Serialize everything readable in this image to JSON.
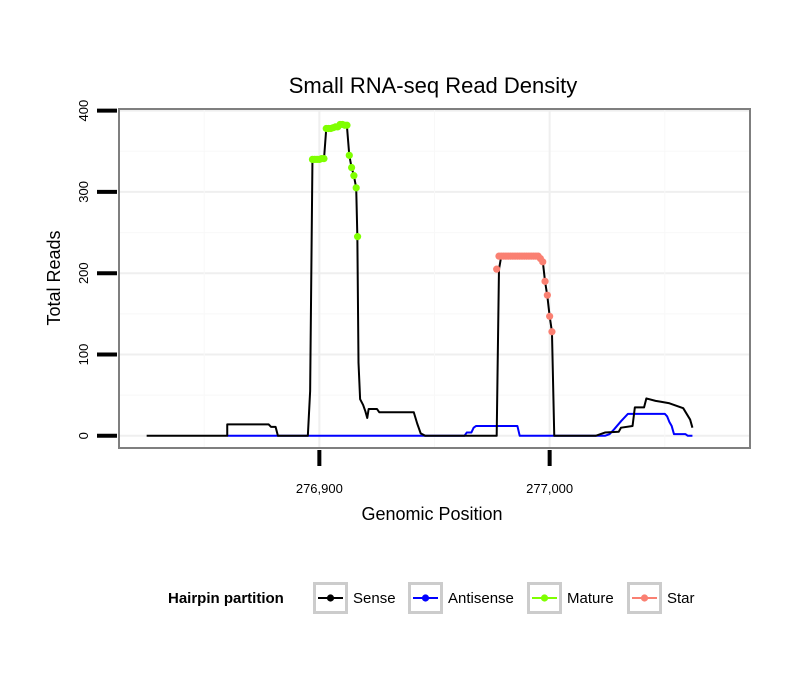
{
  "chart_data": {
    "type": "line",
    "title": "Small RNA-seq Read Density",
    "xlabel": "Genomic Position",
    "ylabel": "Total Reads",
    "xlim": [
      276813,
      277087
    ],
    "ylim": [
      -15,
      402
    ],
    "x_ticks": [
      {
        "value": 276900,
        "label": "276,900"
      },
      {
        "value": 277000,
        "label": "277,000"
      }
    ],
    "y_ticks": [
      {
        "value": 0,
        "label": "0"
      },
      {
        "value": 100,
        "label": "100"
      },
      {
        "value": 200,
        "label": "200"
      },
      {
        "value": 300,
        "label": "300"
      },
      {
        "value": 400,
        "label": "400"
      }
    ],
    "grid": true,
    "legend": {
      "title": "Hairpin partition",
      "position": "bottom",
      "items": [
        {
          "name": "Sense",
          "color": "#000000"
        },
        {
          "name": "Antisense",
          "color": "#0000FF"
        },
        {
          "name": "Mature",
          "color": "#7FFF00"
        },
        {
          "name": "Star",
          "color": "#FA8072"
        }
      ]
    },
    "series": [
      {
        "name": "Sense",
        "kind": "line",
        "color": "#000000",
        "points": [
          [
            276825,
            0
          ],
          [
            276860,
            0
          ],
          [
            276860,
            14
          ],
          [
            276878,
            14
          ],
          [
            276879,
            11
          ],
          [
            276881,
            11
          ],
          [
            276882,
            0
          ],
          [
            276895,
            0
          ],
          [
            276896,
            55
          ],
          [
            276897,
            340
          ],
          [
            276902,
            340
          ],
          [
            276903,
            378
          ],
          [
            276905,
            376
          ],
          [
            276910,
            382
          ],
          [
            276912,
            380
          ],
          [
            276913,
            345
          ],
          [
            276914,
            330
          ],
          [
            276915,
            320
          ],
          [
            276916,
            305
          ],
          [
            276916.5,
            245
          ],
          [
            276917,
            90
          ],
          [
            276917.7,
            45
          ],
          [
            276919,
            38
          ],
          [
            276920,
            30
          ],
          [
            276920.8,
            22
          ],
          [
            276921.4,
            33
          ],
          [
            276925,
            33
          ],
          [
            276926,
            29
          ],
          [
            276941,
            29
          ],
          [
            276942.5,
            15
          ],
          [
            276944,
            3
          ],
          [
            276946,
            0
          ],
          [
            276977,
            0
          ],
          [
            276978,
            205
          ],
          [
            276979,
            221
          ],
          [
            276995,
            221
          ],
          [
            276997,
            215
          ],
          [
            276998,
            190
          ],
          [
            276999,
            172
          ],
          [
            277000,
            147
          ],
          [
            277001,
            128
          ],
          [
            277002,
            0
          ],
          [
            277020,
            0
          ],
          [
            277024,
            4
          ],
          [
            277030,
            5
          ],
          [
            277031,
            10
          ],
          [
            277036,
            12
          ],
          [
            277037,
            35
          ],
          [
            277041,
            35
          ],
          [
            277042,
            46
          ],
          [
            277046,
            43
          ],
          [
            277048,
            42
          ],
          [
            277052,
            40
          ],
          [
            277058,
            34
          ],
          [
            277061,
            20
          ],
          [
            277062,
            10
          ]
        ]
      },
      {
        "name": "Antisense",
        "kind": "line",
        "color": "#0000FF",
        "points": [
          [
            276860,
            0
          ],
          [
            276963,
            0
          ],
          [
            276964,
            4
          ],
          [
            276966,
            4
          ],
          [
            276967,
            10
          ],
          [
            276968,
            12
          ],
          [
            276986,
            12
          ],
          [
            276987,
            0
          ],
          [
            277024,
            0
          ],
          [
            277026,
            2
          ],
          [
            277028,
            8
          ],
          [
            277031,
            18
          ],
          [
            277034,
            27
          ],
          [
            277050,
            27
          ],
          [
            277051,
            24
          ],
          [
            277052,
            17
          ],
          [
            277053,
            12
          ],
          [
            277054,
            2
          ],
          [
            277059,
            2
          ],
          [
            277060,
            0
          ],
          [
            277062,
            0
          ]
        ]
      },
      {
        "name": "Mature",
        "kind": "points",
        "color": "#7FFF00",
        "points": [
          [
            276897,
            340
          ],
          [
            276898,
            340
          ],
          [
            276899,
            340
          ],
          [
            276900,
            340
          ],
          [
            276901,
            341
          ],
          [
            276902,
            341
          ],
          [
            276903,
            378
          ],
          [
            276904,
            378
          ],
          [
            276905,
            378
          ],
          [
            276906,
            379
          ],
          [
            276907,
            380
          ],
          [
            276908,
            380
          ],
          [
            276909,
            383
          ],
          [
            276910,
            383
          ],
          [
            276911,
            382
          ],
          [
            276912,
            382
          ],
          [
            276913,
            345
          ],
          [
            276914,
            330
          ],
          [
            276915,
            320
          ],
          [
            276916,
            305
          ],
          [
            276916.6,
            245
          ]
        ]
      },
      {
        "name": "Star",
        "kind": "points",
        "color": "#FA8072",
        "points": [
          [
            276977,
            205
          ],
          [
            276978,
            221
          ],
          [
            276979,
            221
          ],
          [
            276980,
            221
          ],
          [
            276981,
            221
          ],
          [
            276982,
            221
          ],
          [
            276983,
            221
          ],
          [
            276984,
            221
          ],
          [
            276985,
            221
          ],
          [
            276986,
            221
          ],
          [
            276987,
            221
          ],
          [
            276988,
            221
          ],
          [
            276989,
            221
          ],
          [
            276990,
            221
          ],
          [
            276991,
            221
          ],
          [
            276992,
            221
          ],
          [
            276993,
            221
          ],
          [
            276994,
            221
          ],
          [
            276995,
            221
          ],
          [
            276996,
            218
          ],
          [
            276997,
            214
          ],
          [
            276998,
            190
          ],
          [
            276999,
            173
          ],
          [
            277000,
            147
          ],
          [
            277001,
            128
          ]
        ]
      }
    ]
  }
}
